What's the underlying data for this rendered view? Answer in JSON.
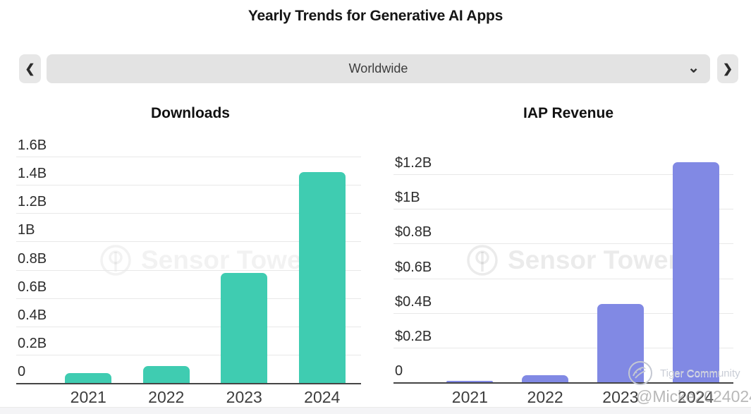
{
  "header": {
    "title": "Yearly Trends for Generative AI Apps"
  },
  "selector": {
    "value": "Worldwide",
    "prev_icon": "❮",
    "next_icon": "❯",
    "dropdown_icon": "⌄"
  },
  "chart_data": [
    {
      "type": "bar",
      "title": "Downloads",
      "categories": [
        "2021",
        "2022",
        "2023",
        "2024"
      ],
      "values": [
        0.07,
        0.12,
        0.78,
        1.49
      ],
      "y_ticks": [
        "1.6B",
        "1.4B",
        "1.2B",
        "1B",
        "0.8B",
        "0.6B",
        "0.4B",
        "0.2B",
        "0"
      ],
      "ylim": [
        0,
        1.6
      ],
      "bar_color": "#3fccb1",
      "grid": "on",
      "legend": "none"
    },
    {
      "type": "bar",
      "title": "IAP Revenue",
      "categories": [
        "2021",
        "2022",
        "2023",
        "2024"
      ],
      "values": [
        0.01,
        0.04,
        0.45,
        1.27
      ],
      "y_ticks": [
        "$1.2B",
        "$1B",
        "$0.8B",
        "$0.6B",
        "$0.4B",
        "$0.2B",
        "0"
      ],
      "ylim": [
        0,
        1.2
      ],
      "bar_color": "#8189e4",
      "grid": "on",
      "legend": "none"
    }
  ],
  "watermarks": {
    "sensor_tower": "Sensor Tower",
    "tiger_community": "Tiger Community",
    "handle": "@Micke2024024"
  },
  "colors": {
    "downloads_bar": "#3fccb1",
    "revenue_bar": "#8189e4",
    "gridline": "#e8e8e8",
    "axis_line": "#454545",
    "control_bg": "#e3e3e3"
  }
}
